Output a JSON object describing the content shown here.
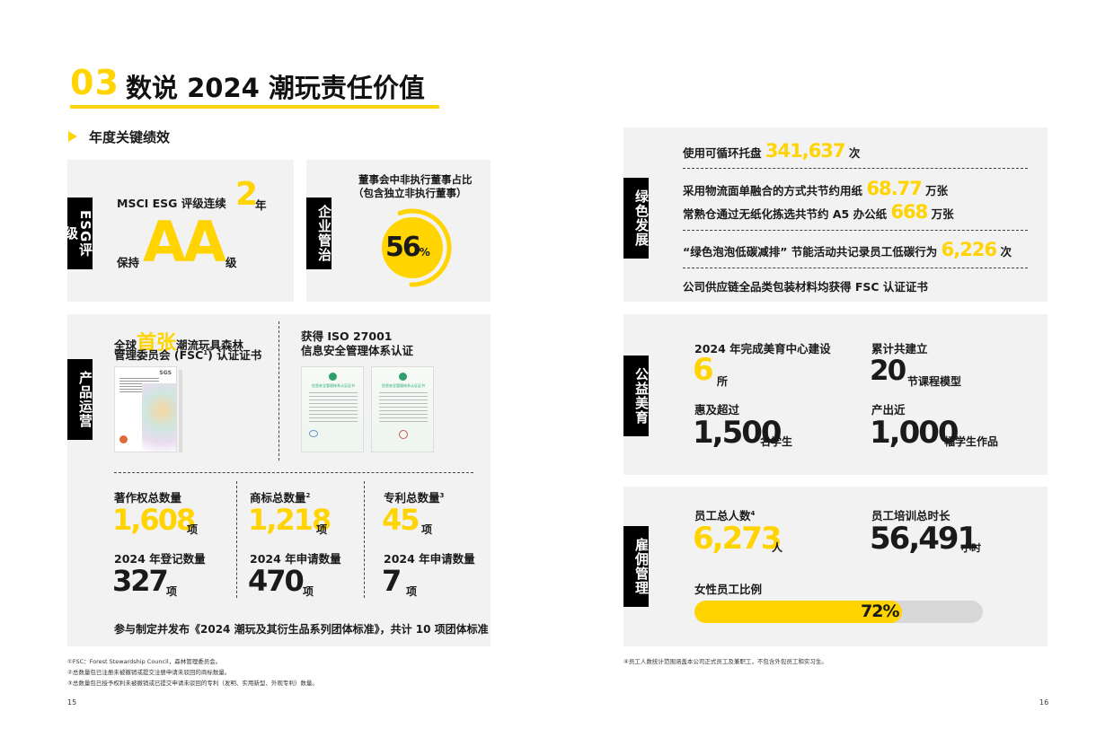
{
  "header": {
    "number": "03",
    "title": "数说 2024 潮玩责任价值",
    "section": "年度关键绩效"
  },
  "esg": {
    "tab": "ESG评级",
    "line1_prefix": "MSCI ESG 评级连续",
    "years": "2",
    "years_unit": "年",
    "line2_prefix": "保持",
    "rating": "AA",
    "rating_unit": "级"
  },
  "governance": {
    "tab": "企业管治",
    "label_line1": "董事会中非执行董事占比",
    "label_line2": "（包含独立非执行董事）",
    "value": "56",
    "value_unit": "%",
    "fraction": 0.56
  },
  "product": {
    "tab": "产品运营",
    "fsc_pre": "全球",
    "fsc_highlight": "首张",
    "fsc_line1_post": "潮流玩具森林",
    "fsc_line2": "管理委员会 (FSC",
    "fsc_sup": "1",
    "fsc_line2_post": ") 认证证书",
    "iso_line1": "获得 ISO 27001",
    "iso_line2": "信息安全管理体系认证",
    "cert_sgs_title": "SGS",
    "cert_iso_title": "信息安全管理体系认证证书",
    "stats": [
      {
        "label": "著作权总数量",
        "sup": "",
        "value": "1,608",
        "unit": "项",
        "sub_label": "2024 年登记数量",
        "sub_value": "327",
        "sub_unit": "项"
      },
      {
        "label": "商标总数量",
        "sup": "2",
        "value": "1,218",
        "unit": "项",
        "sub_label": "2024 年申请数量",
        "sub_value": "470",
        "sub_unit": "项"
      },
      {
        "label": "专利总数量",
        "sup": "3",
        "value": "45",
        "unit": "项",
        "sub_label": "2024 年申请数量",
        "sub_value": "7",
        "sub_unit": "项"
      }
    ],
    "standard": "参与制定并发布《2024 潮玩及其衍生品系列团体标准》，共计 10 项团体标准"
  },
  "green": {
    "tab": "绿色发展",
    "l1_pre": "使用可循环托盘",
    "l1_val": "341,637",
    "l1_unit": "次",
    "l2_pre": "采用物流面单融合的方式共节约用纸",
    "l2_val": "68.77",
    "l2_unit": "万张",
    "l3_pre": "常熟仓通过无纸化拣选共节约 A5 办公纸",
    "l3_val": "668",
    "l3_unit": "万张",
    "l4_pre": "“绿色泡泡低碳减排” 节能活动共记录员工低碳行为",
    "l4_val": "6,226",
    "l4_unit": "次",
    "l5": "公司供应链全品类包装材料均获得 FSC 认证证书"
  },
  "welfare": {
    "tab": "公益美育",
    "a_label": "2024 年完成美育中心建设",
    "a_val": "6",
    "a_unit": "所",
    "b_label": "累计共建立",
    "b_val": "20",
    "b_unit": "节课程模型",
    "c_label": "惠及超过",
    "c_val": "1,500",
    "c_unit": "名学生",
    "d_label": "产出近",
    "d_val": "1,000",
    "d_unit": "幅学生作品"
  },
  "employment": {
    "tab": "雇佣管理",
    "a_label": "员工总人数",
    "a_sup": "4",
    "a_val": "6,273",
    "a_unit": "人",
    "b_label": "员工培训总时长",
    "b_val": "56,491",
    "b_unit": "小时",
    "female_label": "女性员工比例",
    "female_val": "72%",
    "female_fraction": 0.72
  },
  "footnotes": {
    "left": [
      "①FSC：Forest Stewardship Council，森林管理委员会。",
      "②总数量包已注册未被撤销或提交注册申请未驳回的商标数量。",
      "③总数量包已授予权利未被撤销或已提交申请未驳回的专利（发明、实用新型、外观专利）数量。"
    ],
    "right": "④员工人数统计范围涵盖本公司正式员工及兼职工，不包含外包员工和实习生。"
  },
  "pages": {
    "left": "15",
    "right": "16"
  },
  "colors": {
    "accent": "#FFD400",
    "panel": "#f2f2f2",
    "tab": "#000000"
  }
}
